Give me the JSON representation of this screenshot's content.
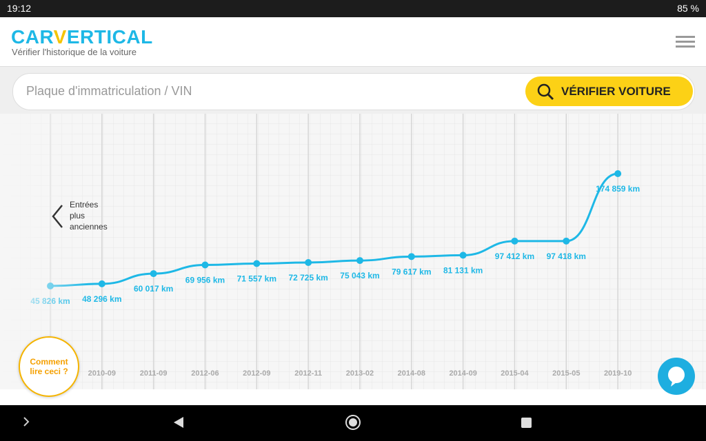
{
  "status_bar": {
    "time": "19:12",
    "battery": "85 %"
  },
  "header": {
    "logo": [
      "CAR",
      "V",
      "ERTICAL"
    ],
    "subtitle": "Vérifier l'historique de la voiture"
  },
  "search": {
    "placeholder": "Plaque d'immatriculation / VIN",
    "button": "VÉRIFIER VOITURE"
  },
  "older_entries": [
    "Entrées",
    "plus",
    "anciennes"
  ],
  "help_button": [
    "Comment",
    "lire ceci ?"
  ],
  "chart_data": {
    "type": "line",
    "color": "#1eb8e6",
    "categories": [
      null,
      "2010-09",
      "2011-09",
      "2012-06",
      "2012-09",
      "2012-11",
      "2013-02",
      "2014-08",
      "2014-09",
      "2015-04",
      "2015-05",
      "2019-10"
    ],
    "values": [
      45826,
      48296,
      60017,
      69956,
      71557,
      72725,
      75043,
      79617,
      81131,
      97412,
      97418,
      174859
    ],
    "value_labels": [
      "45 826 km",
      "48 296 km",
      "60 017 km",
      "69 956 km",
      "71 557 km",
      "72 725 km",
      "75 043 km",
      "79 617 km",
      "81 131 km",
      "97 412 km",
      "97 418 km",
      "174 859 km"
    ]
  }
}
